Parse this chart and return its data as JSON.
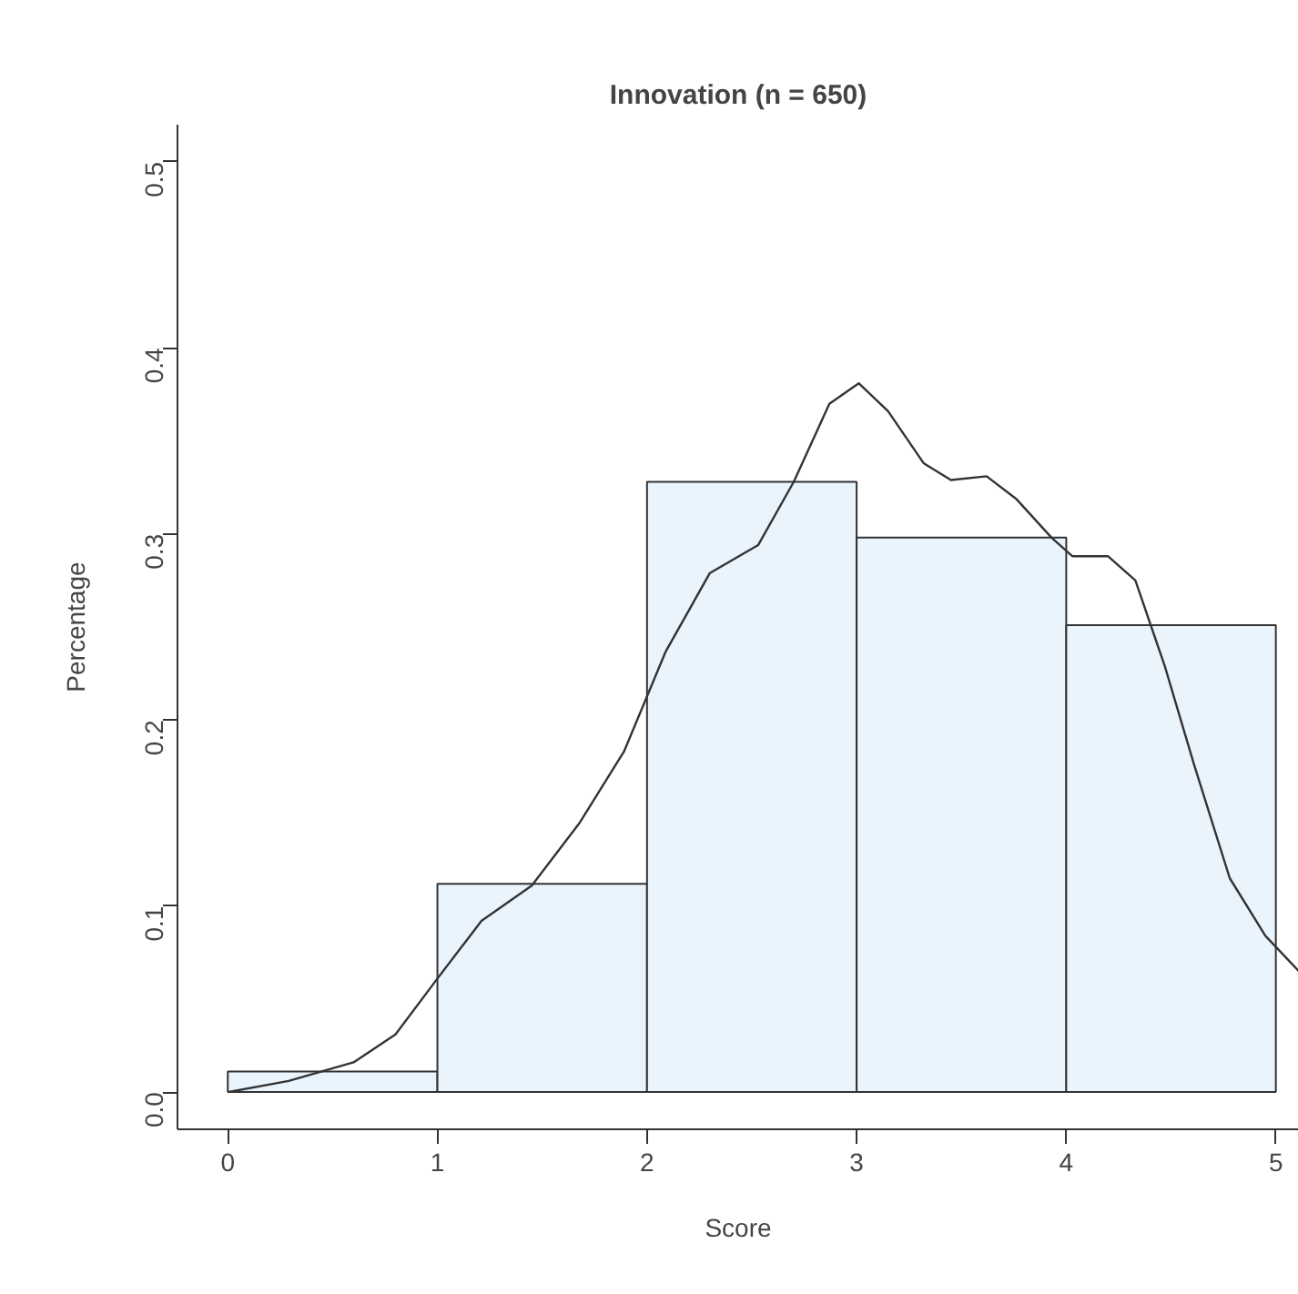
{
  "chart_data": {
    "type": "histogram",
    "title": "Innovation (n = 650)",
    "xlabel": "Score",
    "ylabel": "Percentage",
    "bins": [
      0,
      1,
      2,
      3,
      4,
      5
    ],
    "values": [
      0.011,
      0.112,
      0.328,
      0.298,
      0.251
    ],
    "color": "#eaf4fc",
    "xlim": [
      -0.24,
      5.11
    ],
    "ylim": [
      -0.02,
      0.52
    ],
    "xticks": [
      0,
      1,
      2,
      3,
      4,
      5
    ],
    "yticks": [
      {
        "value": 0,
        "label": "0.0"
      },
      0.1,
      0.2,
      0.3,
      0.4,
      0.5
    ],
    "series": [
      {
        "type": "line",
        "color": "#333333",
        "x": [
          0,
          0.29,
          0.6,
          0.8,
          1.0,
          1.21,
          1.45,
          1.68,
          1.89,
          2.09,
          2.3,
          2.53,
          2.7,
          2.87,
          3.01,
          3.15,
          3.32,
          3.45,
          3.62,
          3.76,
          3.93,
          4.03,
          4.2,
          4.33,
          4.47,
          4.61,
          4.78,
          4.95,
          5.11
        ],
        "values": [
          0,
          0.006,
          0.016,
          0.031,
          0.061,
          0.092,
          0.111,
          0.145,
          0.183,
          0.237,
          0.279,
          0.294,
          0.328,
          0.37,
          0.381,
          0.366,
          0.338,
          0.329,
          0.331,
          0.319,
          0.298,
          0.288,
          0.288,
          0.275,
          0.229,
          0.176,
          0.115,
          0.084,
          0.065
        ]
      }
    ]
  }
}
